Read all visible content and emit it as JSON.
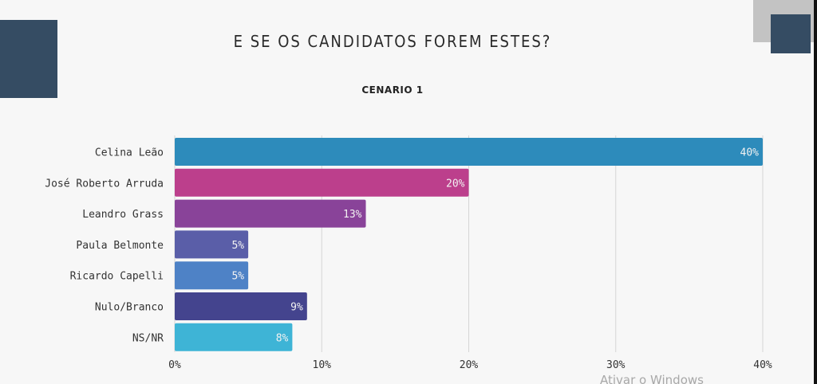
{
  "slide": {
    "title": "E SE OS CANDIDATOS FOREM ESTES?",
    "watermark": "Ativar o Windows"
  },
  "chart_data": {
    "type": "bar",
    "orientation": "horizontal",
    "title": "CENARIO 1",
    "categories": [
      "Celina Leão",
      "José Roberto Arruda",
      "Leandro Grass",
      "Paula Belmonte",
      "Ricardo Capelli",
      "Nulo/Branco",
      "NS/NR"
    ],
    "values": [
      40,
      20,
      13,
      5,
      5,
      9,
      8
    ],
    "value_labels": [
      "40%",
      "20%",
      "13%",
      "5%",
      "5%",
      "9%",
      "8%"
    ],
    "bar_colors": [
      "#2d8bbb",
      "#bc3f8c",
      "#894399",
      "#5a5ea8",
      "#4e82c6",
      "#44448e",
      "#3eb4d6"
    ],
    "xlim": [
      0,
      40
    ],
    "xticks": [
      0,
      10,
      20,
      30,
      40
    ],
    "xtick_labels": [
      "0%",
      "10%",
      "20%",
      "30%",
      "40%"
    ],
    "grid": true,
    "xlabel": "",
    "ylabel": ""
  }
}
